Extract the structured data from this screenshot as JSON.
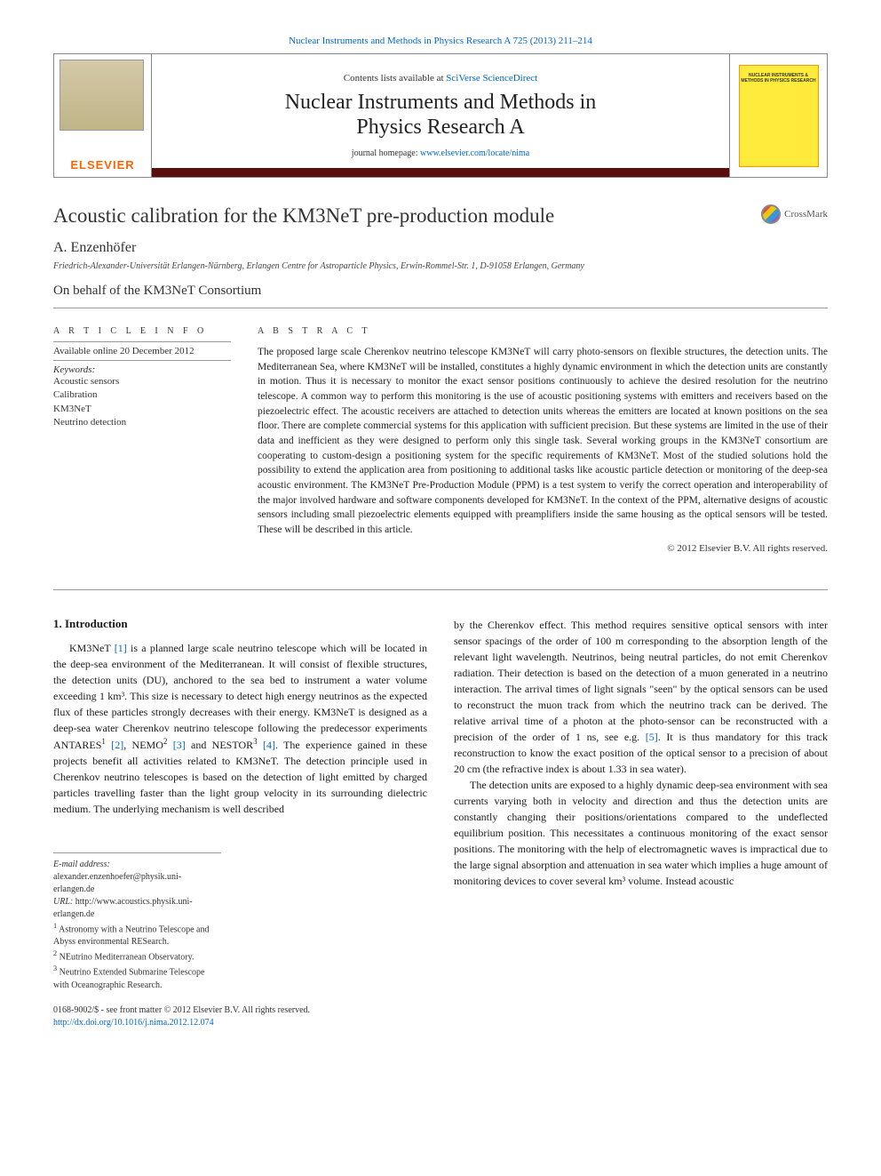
{
  "header": {
    "top_link": "Nuclear Instruments and Methods in Physics Research A 725 (2013) 211–214",
    "contents_prefix": "Contents lists available at ",
    "contents_link": "SciVerse ScienceDirect",
    "journal_name_line1": "Nuclear Instruments and Methods in",
    "journal_name_line2": "Physics Research A",
    "homepage_prefix": "journal homepage: ",
    "homepage_link": "www.elsevier.com/locate/nima",
    "elsevier": "ELSEVIER",
    "cover_text": "NUCLEAR INSTRUMENTS & METHODS IN PHYSICS RESEARCH"
  },
  "article": {
    "title": "Acoustic calibration for the KM3NeT pre-production module",
    "crossmark": "CrossMark",
    "author": "A. Enzenhöfer",
    "affiliation": "Friedrich-Alexander-Universität Erlangen-Nürnberg, Erlangen Centre for Astroparticle Physics, Erwin-Rommel-Str. 1, D-91058 Erlangen, Germany",
    "behalf": "On behalf of the KM3NeT Consortium"
  },
  "info": {
    "heading": "A R T I C L E   I N F O",
    "available": "Available online 20 December 2012",
    "keywords_label": "Keywords:",
    "keywords": [
      "Acoustic sensors",
      "Calibration",
      "KM3NeT",
      "Neutrino detection"
    ]
  },
  "abstract": {
    "heading": "A B S T R A C T",
    "text": "The proposed large scale Cherenkov neutrino telescope KM3NeT will carry photo-sensors on flexible structures, the detection units. The Mediterranean Sea, where KM3NeT will be installed, constitutes a highly dynamic environment in which the detection units are constantly in motion. Thus it is necessary to monitor the exact sensor positions continuously to achieve the desired resolution for the neutrino telescope. A common way to perform this monitoring is the use of acoustic positioning systems with emitters and receivers based on the piezoelectric effect. The acoustic receivers are attached to detection units whereas the emitters are located at known positions on the sea floor. There are complete commercial systems for this application with sufficient precision. But these systems are limited in the use of their data and inefficient as they were designed to perform only this single task. Several working groups in the KM3NeT consortium are cooperating to custom-design a positioning system for the specific requirements of KM3NeT. Most of the studied solutions hold the possibility to extend the application area from positioning to additional tasks like acoustic particle detection or monitoring of the deep-sea acoustic environment. The KM3NeT Pre-Production Module (PPM) is a test system to verify the correct operation and interoperability of the major involved hardware and software components developed for KM3NeT. In the context of the PPM, alternative designs of acoustic sensors including small piezoelectric elements equipped with preamplifiers inside the same housing as the optical sensors will be tested. These will be described in this article.",
    "copyright": "© 2012 Elsevier B.V. All rights reserved."
  },
  "section1": {
    "heading": "1.  Introduction",
    "col1_p1_a": "KM3NeT ",
    "ref1": "[1]",
    "col1_p1_b": " is a planned large scale neutrino telescope which will be located in the deep-sea environment of the Mediterranean. It will consist of flexible structures, the detection units (DU), anchored to the sea bed to instrument a water volume exceeding 1 km³. This size is necessary to detect high energy neutrinos as the expected flux of these particles strongly decreases with their energy. KM3NeT is designed as a deep-sea water Cherenkov neutrino telescope following the predecessor experiments ANTARES",
    "sup1": "1",
    "ref2": " [2]",
    "col1_p1_c": ", NEMO",
    "sup2": "2",
    "ref3": " [3]",
    "col1_p1_d": " and NESTOR",
    "sup3": "3",
    "ref4": " [4]",
    "col1_p1_e": ". The experience gained in these projects benefit all activities related to KM3NeT. The detection principle used in Cherenkov neutrino telescopes is based on the detection of light emitted by charged particles travelling faster than the light group velocity in its surrounding dielectric medium. The underlying mechanism is well described",
    "col2_p1_a": "by the Cherenkov effect. This method requires sensitive optical sensors with inter sensor spacings of the order of 100 m corresponding to the absorption length of the relevant light wavelength. Neutrinos, being neutral particles, do not emit Cherenkov radiation. Their detection is based on the detection of a muon generated in a neutrino interaction. The arrival times of light signals \"seen\" by the optical sensors can be used to reconstruct the muon track from which the neutrino track can be derived. The relative arrival time of a photon at the photo-sensor can be reconstructed with a precision of the order of 1 ns, see e.g. ",
    "ref5": "[5]",
    "col2_p1_b": ". It is thus mandatory for this track reconstruction to know the exact position of the optical sensor to a precision of about 20 cm (the refractive index is about 1.33 in sea water).",
    "col2_p2": "The detection units are exposed to a highly dynamic deep-sea environment with sea currents varying both in velocity and direction and thus the detection units are constantly changing their positions/orientations compared to the undeflected equilibrium position. This necessitates a continuous monitoring of the exact sensor positions. The monitoring with the help of electromagnetic waves is impractical due to the large signal absorption and attenuation in sea water which implies a huge amount of monitoring devices to cover several km³ volume. Instead acoustic"
  },
  "footnotes": {
    "email_label": "E-mail address: ",
    "email": "alexander.enzenhoefer@physik.uni-erlangen.de",
    "url_label": "URL: ",
    "url": "http://www.acoustics.physik.uni-erlangen.de",
    "fn1": "Astronomy with a Neutrino Telescope and Abyss environmental RESearch.",
    "fn2": "NEutrino Mediterranean Observatory.",
    "fn3": "Neutrino Extended Submarine Telescope with Oceanographic Research."
  },
  "frontmatter": {
    "line1": "0168-9002/$ - see front matter © 2012 Elsevier B.V. All rights reserved.",
    "doi": "http://dx.doi.org/10.1016/j.nima.2012.12.074"
  },
  "colors": {
    "link": "#0066cc",
    "bar": "#5a0d0d",
    "elsevier": "#ff6600",
    "cover_bg": "#ffeb3b"
  }
}
